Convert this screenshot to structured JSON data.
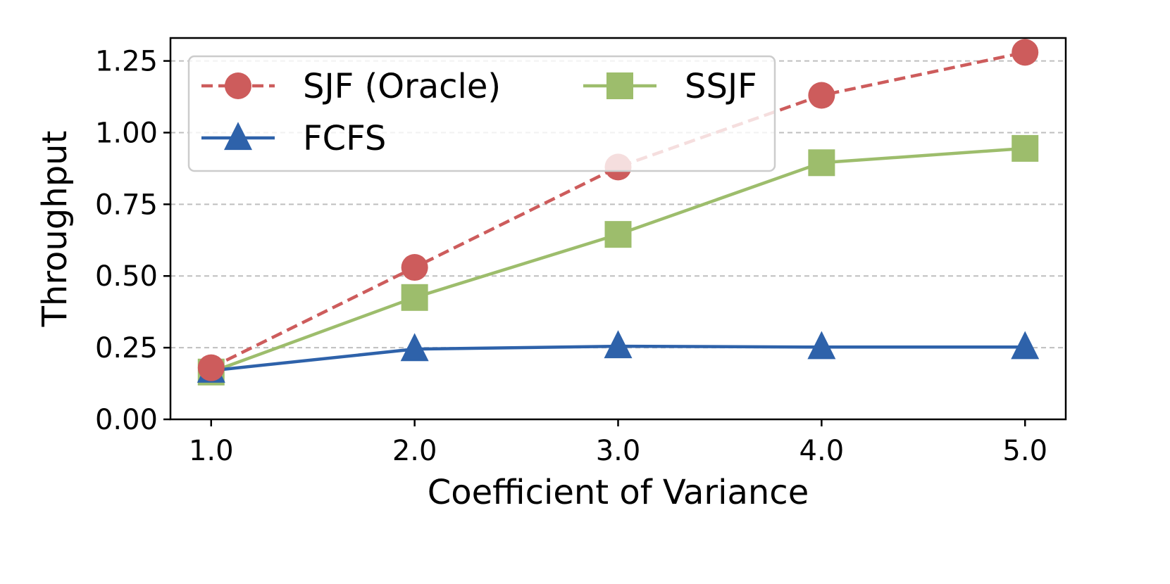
{
  "chart_data": {
    "type": "line",
    "title": "",
    "xlabel": "Coefficient of Variance",
    "ylabel": "Throughput",
    "x": [
      1.0,
      2.0,
      3.0,
      4.0,
      5.0
    ],
    "xtick_labels": [
      "1.0",
      "2.0",
      "3.0",
      "4.0",
      "5.0"
    ],
    "yticks": [
      0.0,
      0.25,
      0.5,
      0.75,
      1.0,
      1.25
    ],
    "ytick_labels": [
      "0.00",
      "0.25",
      "0.50",
      "0.75",
      "1.00",
      "1.25"
    ],
    "xlim": [
      0.8,
      5.2
    ],
    "ylim": [
      0.0,
      1.33
    ],
    "grid": "y-dashed",
    "legend_position": "top-left",
    "series": [
      {
        "name": "SJF (Oracle)",
        "marker": "circle",
        "line_style": "dashed",
        "color": "#cd5c5c",
        "values": [
          0.18,
          0.53,
          0.88,
          1.13,
          1.28
        ]
      },
      {
        "name": "FCFS",
        "marker": "triangle",
        "line_style": "solid",
        "color": "#2e62aa",
        "values": [
          0.17,
          0.245,
          0.255,
          0.252,
          0.252
        ]
      },
      {
        "name": "SSJF",
        "marker": "square",
        "line_style": "solid",
        "color": "#9dbd6c",
        "values": [
          0.165,
          0.425,
          0.645,
          0.895,
          0.945
        ]
      }
    ],
    "legend_order": [
      0,
      2,
      1
    ]
  }
}
